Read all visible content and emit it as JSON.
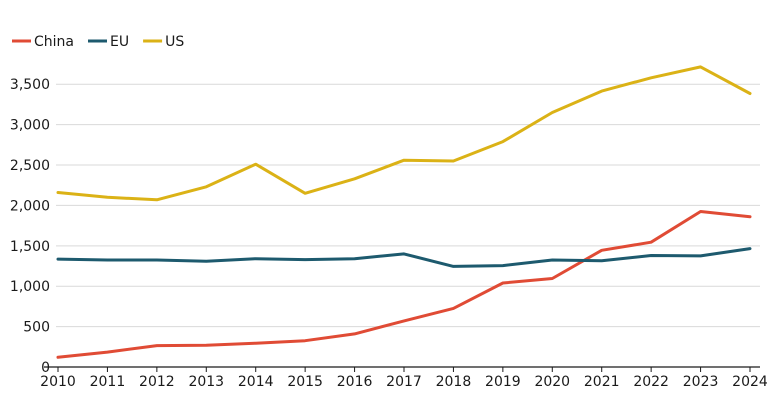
{
  "chart_data": {
    "type": "line",
    "title": "",
    "xlabel": "",
    "ylabel": "",
    "x": [
      2010,
      2011,
      2012,
      2013,
      2014,
      2015,
      2016,
      2017,
      2018,
      2019,
      2020,
      2021,
      2022,
      2023,
      2024
    ],
    "x_tick_labels": [
      "2010",
      "2011",
      "2012",
      "2013",
      "2014",
      "2015",
      "2016",
      "2017",
      "2018",
      "2019",
      "2020",
      "2021",
      "2022",
      "2023",
      "2024"
    ],
    "ylim": [
      0,
      3800
    ],
    "y_ticks": [
      0,
      500,
      1000,
      1500,
      2000,
      2500,
      3000,
      3500
    ],
    "y_tick_labels": [
      "0",
      "500",
      "1,000",
      "1,500",
      "2,000",
      "2,500",
      "3,000",
      "3,500"
    ],
    "grid": true,
    "legend_position": "top-left",
    "series": [
      {
        "name": "China",
        "color": "#e04b35",
        "values": [
          120,
          185,
          265,
          270,
          295,
          325,
          410,
          570,
          725,
          1040,
          1095,
          1445,
          1545,
          1925,
          1860
        ]
      },
      {
        "name": "EU",
        "color": "#1d5a6e",
        "values": [
          1335,
          1325,
          1325,
          1310,
          1340,
          1330,
          1340,
          1400,
          1245,
          1255,
          1325,
          1315,
          1380,
          1375,
          1465
        ]
      },
      {
        "name": "US",
        "color": "#dbb216",
        "values": [
          2160,
          2100,
          2070,
          2230,
          2510,
          2150,
          2330,
          2560,
          2550,
          2790,
          3150,
          3415,
          3580,
          3715,
          3385
        ]
      }
    ]
  }
}
